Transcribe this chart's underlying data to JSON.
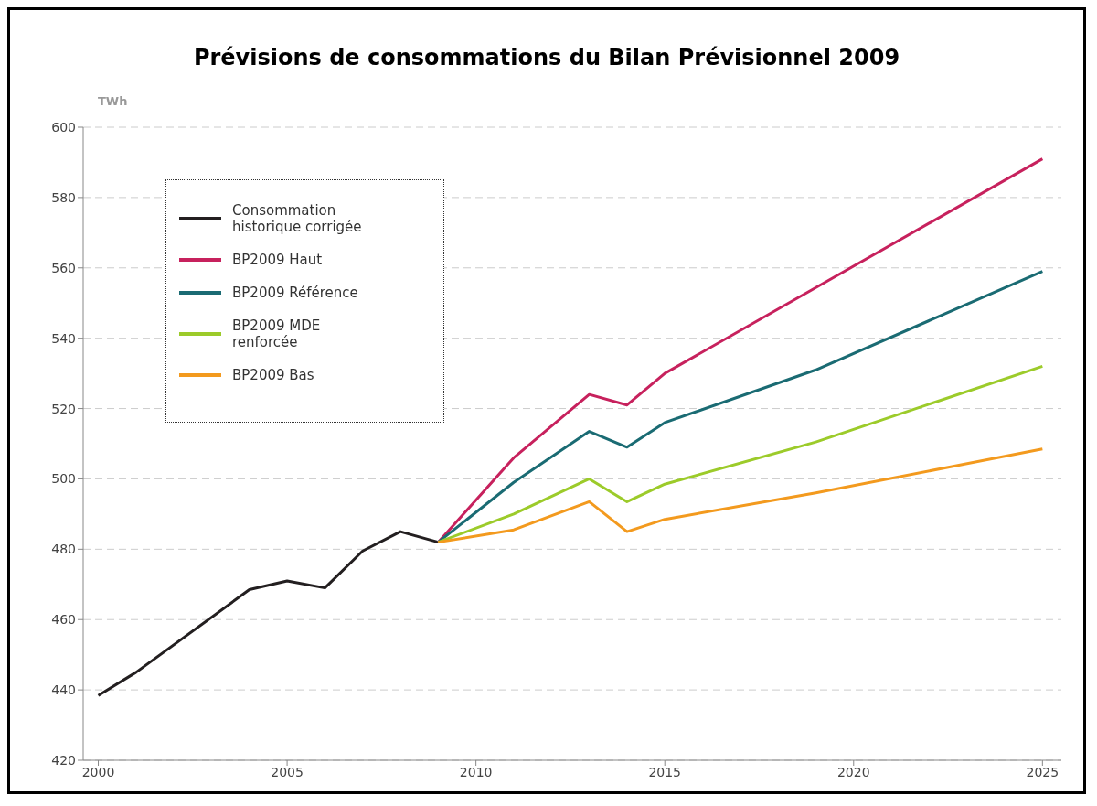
{
  "chart_data": {
    "type": "line",
    "title": "Prévisions de consommations du Bilan Prévisionnel 2009",
    "ylabel": "TWh",
    "xlim": [
      1999.6,
      2025.5
    ],
    "xticks": [
      2000,
      2005,
      2010,
      2015,
      2020,
      2025
    ],
    "ylim": [
      420,
      600
    ],
    "yticks": [
      420,
      440,
      460,
      480,
      500,
      520,
      540,
      560,
      580,
      600
    ],
    "grid": "y",
    "legend": "top left",
    "marker": "none",
    "line_style": "solid",
    "series": [
      {
        "name": "Consommation historique corrigée",
        "color": "#231f20",
        "x": [
          2000,
          2001,
          2004,
          2005,
          2006,
          2007,
          2008,
          2009
        ],
        "values": [
          438.4,
          445,
          468.5,
          471,
          469,
          479.5,
          485,
          482
        ]
      },
      {
        "name": "BP2009 Haut",
        "color": "#c7215d",
        "x": [
          2009,
          2011,
          2013,
          2014,
          2015,
          2025
        ],
        "values": [
          482,
          506,
          524,
          521,
          530,
          591
        ]
      },
      {
        "name": "BP2009 Référence",
        "color": "#1a6b73",
        "x": [
          2009,
          2011,
          2013,
          2014,
          2015,
          2019,
          2025
        ],
        "values": [
          482,
          499,
          513.5,
          509,
          516,
          531,
          559
        ]
      },
      {
        "name": "BP2009 MDE renforcée",
        "color": "#9ccb2a",
        "x": [
          2009,
          2011,
          2013,
          2014,
          2015,
          2019,
          2025
        ],
        "values": [
          482,
          490,
          500,
          493.5,
          498.5,
          510.5,
          532
        ]
      },
      {
        "name": "BP2009 Bas",
        "color": "#f39a1e",
        "x": [
          2009,
          2011,
          2013,
          2014,
          2015,
          2019,
          2025
        ],
        "values": [
          482,
          485.5,
          493.5,
          485,
          488.5,
          496,
          508.5
        ]
      }
    ]
  }
}
